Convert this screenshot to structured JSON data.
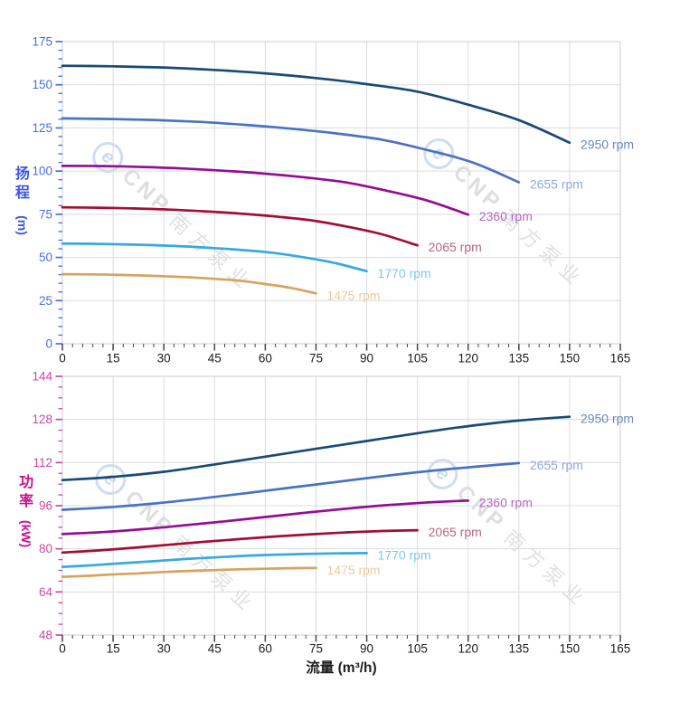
{
  "watermark": {
    "logo_letter": "e",
    "brand": "CNP",
    "company": "南方泵业"
  },
  "colors": {
    "grid": "#dadce0",
    "plot_border": "#c9cdd3",
    "x_tick_mark": "#444444",
    "x_tick_label": "#1a1a1a",
    "head_axis": "#4a6de5",
    "head_title": "#3c55dd",
    "power_axis": "#cf47a2",
    "power_title": "#c4128c"
  },
  "chart_data": [
    {
      "type": "line",
      "id": "head",
      "title": "",
      "ylabel_cn": "扬程",
      "ylabel_unit": "(m)",
      "xlabel": "",
      "xlim": [
        0,
        165
      ],
      "ylim": [
        0,
        175
      ],
      "x_ticks": [
        0,
        15,
        30,
        45,
        60,
        75,
        90,
        105,
        120,
        135,
        150,
        165
      ],
      "x_minor_step": 3,
      "y_ticks": [
        0,
        25,
        50,
        75,
        100,
        125,
        150,
        175
      ],
      "y_minor_step": 5,
      "grid": true,
      "legend_position": "curve-end-labels",
      "axis_color": "#4a6de5",
      "series": [
        {
          "name": "2950 rpm",
          "color": "#1a4a75",
          "label_color": "#6d89b8",
          "points": [
            [
              0,
              161
            ],
            [
              15,
              160.7
            ],
            [
              30,
              160
            ],
            [
              45,
              158.6
            ],
            [
              60,
              156.6
            ],
            [
              75,
              153.9
            ],
            [
              90,
              150.4
            ],
            [
              105,
              146
            ],
            [
              120,
              138.5
            ],
            [
              135,
              129.5
            ],
            [
              150,
              116.5
            ]
          ]
        },
        {
          "name": "2655 rpm",
          "color": "#4a72c4",
          "label_color": "#93a7dc",
          "points": [
            [
              0,
              130.5
            ],
            [
              13.5,
              130.2
            ],
            [
              27,
              129.6
            ],
            [
              40.5,
              128.5
            ],
            [
              54,
              126.8
            ],
            [
              67.5,
              124.6
            ],
            [
              81,
              121.8
            ],
            [
              94.5,
              118.2
            ],
            [
              108,
              112.2
            ],
            [
              121.5,
              104.9
            ],
            [
              135,
              93.5
            ]
          ]
        },
        {
          "name": "2360 rpm",
          "color": "#950d95",
          "label_color": "#b468c4",
          "points": [
            [
              0,
              103
            ],
            [
              12,
              102.9
            ],
            [
              24,
              102.4
            ],
            [
              36,
              101.5
            ],
            [
              48,
              100.2
            ],
            [
              60,
              98.5
            ],
            [
              72,
              96.3
            ],
            [
              84,
              93.4
            ],
            [
              96,
              88.6
            ],
            [
              108,
              82.9
            ],
            [
              120,
              74.8
            ]
          ]
        },
        {
          "name": "2065 rpm",
          "color": "#a30f33",
          "label_color": "#b36880",
          "points": [
            [
              0,
              79
            ],
            [
              10.5,
              78.8
            ],
            [
              21,
              78.4
            ],
            [
              31.5,
              77.7
            ],
            [
              42,
              76.7
            ],
            [
              52.5,
              75.4
            ],
            [
              63,
              73.7
            ],
            [
              73.5,
              71.5
            ],
            [
              84,
              67.9
            ],
            [
              94.5,
              63.4
            ],
            [
              105,
              57
            ]
          ]
        },
        {
          "name": "1770 rpm",
          "color": "#36a9e1",
          "label_color": "#7ec8f0",
          "points": [
            [
              0,
              58
            ],
            [
              9,
              57.9
            ],
            [
              18,
              57.6
            ],
            [
              27,
              57.1
            ],
            [
              36,
              56.4
            ],
            [
              45,
              55.4
            ],
            [
              54,
              54.2
            ],
            [
              63,
              52.5
            ],
            [
              72,
              49.9
            ],
            [
              81,
              46.6
            ],
            [
              90,
              42
            ]
          ]
        },
        {
          "name": "1475 rpm",
          "color": "#d7a360",
          "label_color": "#ecca9e",
          "points": [
            [
              0,
              40.3
            ],
            [
              7.5,
              40.2
            ],
            [
              15,
              40
            ],
            [
              22.5,
              39.6
            ],
            [
              30,
              39.1
            ],
            [
              37.5,
              38.5
            ],
            [
              45,
              37.6
            ],
            [
              52.5,
              36.5
            ],
            [
              60,
              34.6
            ],
            [
              67.5,
              32.4
            ],
            [
              75,
              29.2
            ]
          ]
        }
      ]
    },
    {
      "type": "line",
      "id": "power",
      "title": "",
      "ylabel_cn": "功率",
      "ylabel_unit": "(kW)",
      "xlabel": "流量 (m³/h)",
      "xlim": [
        0,
        165
      ],
      "ylim": [
        48,
        144
      ],
      "x_ticks": [
        0,
        15,
        30,
        45,
        60,
        75,
        90,
        105,
        120,
        135,
        150,
        165
      ],
      "x_minor_step": 3,
      "y_ticks": [
        48,
        64,
        80,
        96,
        112,
        128,
        144
      ],
      "y_minor_step": 4,
      "grid": true,
      "legend_position": "curve-end-labels",
      "axis_color": "#cf47a2",
      "series": [
        {
          "name": "2950 rpm",
          "color": "#1a4a75",
          "label_color": "#6d89b8",
          "points": [
            [
              0,
              105.5
            ],
            [
              15,
              106.7
            ],
            [
              30,
              108.6
            ],
            [
              45,
              111.3
            ],
            [
              60,
              114.2
            ],
            [
              75,
              117.1
            ],
            [
              90,
              120
            ],
            [
              105,
              122.9
            ],
            [
              120,
              125.5
            ],
            [
              135,
              127.6
            ],
            [
              150,
              129
            ]
          ]
        },
        {
          "name": "2655 rpm",
          "color": "#4a72c4",
          "label_color": "#93a7dc",
          "points": [
            [
              0,
              94.5
            ],
            [
              13.5,
              95.4
            ],
            [
              27,
              96.8
            ],
            [
              40.5,
              98.6
            ],
            [
              54,
              100.6
            ],
            [
              67.5,
              102.7
            ],
            [
              81,
              104.8
            ],
            [
              94.5,
              106.9
            ],
            [
              108,
              108.8
            ],
            [
              121.5,
              110.4
            ],
            [
              135,
              111.8
            ]
          ]
        },
        {
          "name": "2360 rpm",
          "color": "#950d95",
          "label_color": "#b468c4",
          "points": [
            [
              0,
              85.5
            ],
            [
              12,
              86.2
            ],
            [
              24,
              87.3
            ],
            [
              36,
              88.7
            ],
            [
              48,
              90.2
            ],
            [
              60,
              91.8
            ],
            [
              72,
              93.4
            ],
            [
              84,
              94.9
            ],
            [
              96,
              96.2
            ],
            [
              108,
              97.2
            ],
            [
              120,
              97.9
            ]
          ]
        },
        {
          "name": "2065 rpm",
          "color": "#a30f33",
          "label_color": "#b36880",
          "points": [
            [
              0,
              78.6
            ],
            [
              10.5,
              79.4
            ],
            [
              21,
              80.4
            ],
            [
              31.5,
              81.5
            ],
            [
              42,
              82.6
            ],
            [
              52.5,
              83.6
            ],
            [
              63,
              84.6
            ],
            [
              73.5,
              85.4
            ],
            [
              84,
              86.1
            ],
            [
              94.5,
              86.6
            ],
            [
              105,
              86.9
            ]
          ]
        },
        {
          "name": "1770 rpm",
          "color": "#36a9e1",
          "label_color": "#7ec8f0",
          "points": [
            [
              0,
              73.3
            ],
            [
              9,
              73.9
            ],
            [
              18,
              74.7
            ],
            [
              27,
              75.4
            ],
            [
              36,
              76.2
            ],
            [
              45,
              76.8
            ],
            [
              54,
              77.4
            ],
            [
              63,
              77.8
            ],
            [
              72,
              78.1
            ],
            [
              81,
              78.3
            ],
            [
              90,
              78.4
            ]
          ]
        },
        {
          "name": "1475 rpm",
          "color": "#d7a360",
          "label_color": "#ecca9e",
          "points": [
            [
              0,
              69.6
            ],
            [
              7.5,
              70
            ],
            [
              15,
              70.5
            ],
            [
              22.5,
              70.9
            ],
            [
              30,
              71.4
            ],
            [
              37.5,
              71.8
            ],
            [
              45,
              72.1
            ],
            [
              52.5,
              72.4
            ],
            [
              60,
              72.6
            ],
            [
              67.5,
              72.8
            ],
            [
              75,
              72.9
            ]
          ]
        }
      ]
    }
  ]
}
